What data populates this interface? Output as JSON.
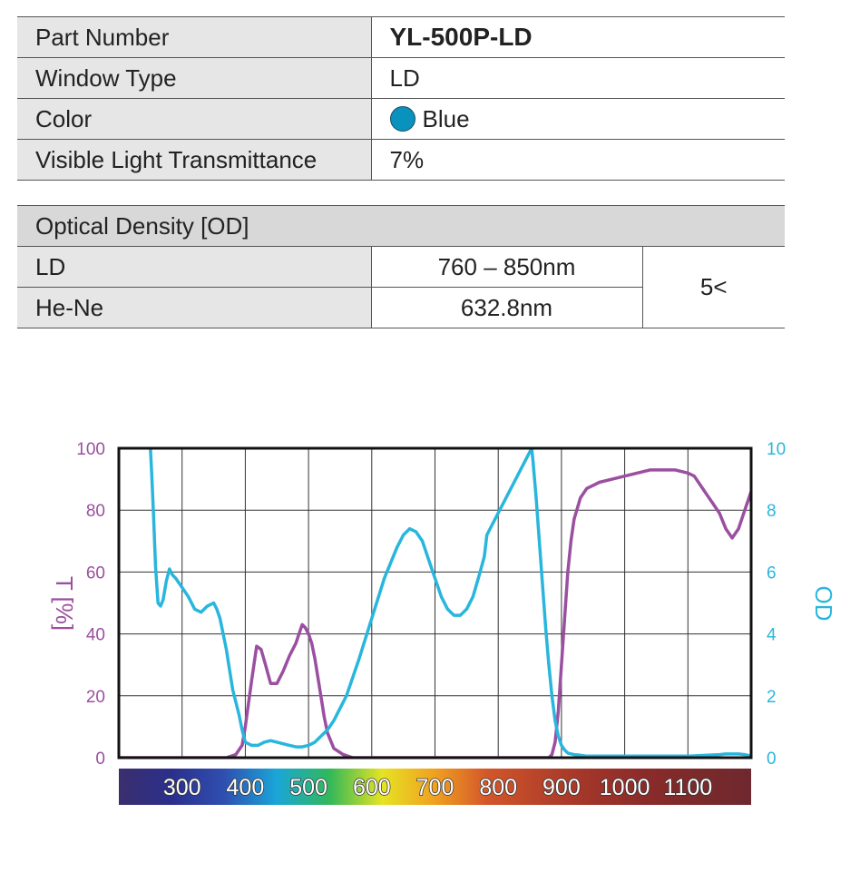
{
  "specs": [
    {
      "label": "Part Number",
      "value": "YL-500P-LD"
    },
    {
      "label": "Window Type",
      "value": "LD"
    },
    {
      "label": "Color",
      "value": "Blue",
      "swatch": "#0892bd"
    },
    {
      "label": "Visible Light Transmittance",
      "value": "7%"
    }
  ],
  "od_table": {
    "header": "Optical Density [OD]",
    "rows": [
      {
        "label": "LD",
        "range": "760 – 850nm"
      },
      {
        "label": "He-Ne",
        "range": "632.8nm"
      }
    ],
    "value": "5<"
  },
  "chart_data": {
    "type": "line",
    "ylabel": "T [%]",
    "y2label": "OD",
    "xlim": [
      200,
      1200
    ],
    "ylim": [
      0,
      100
    ],
    "y2lim": [
      0,
      10
    ],
    "yticks": [
      0,
      20,
      40,
      60,
      80,
      100
    ],
    "y2ticks": [
      0,
      2,
      4,
      6,
      8,
      10
    ],
    "wavelength_labels": [
      "300",
      "400",
      "500",
      "600",
      "700",
      "800",
      "900",
      "1000",
      "1100"
    ],
    "grid": true,
    "series": [
      {
        "name": "T [%]",
        "axis": "left",
        "color": "#9b4fa0",
        "x": [
          200,
          370,
          385,
          395,
          400,
          410,
          418,
          425,
          432,
          440,
          450,
          460,
          470,
          480,
          485,
          490,
          495,
          500,
          505,
          510,
          518,
          525,
          530,
          540,
          555,
          570,
          880,
          885,
          890,
          895,
          900,
          905,
          910,
          915,
          920,
          930,
          940,
          950,
          960,
          980,
          1000,
          1020,
          1040,
          1060,
          1080,
          1100,
          1110,
          1120,
          1130,
          1140,
          1150,
          1160,
          1170,
          1180,
          1190,
          1200
        ],
        "y": [
          0,
          0,
          1,
          4,
          10,
          25,
          36,
          35,
          30,
          24,
          24,
          28,
          33,
          37,
          40,
          43,
          42,
          40,
          37,
          32,
          22,
          13,
          8,
          3,
          1,
          0,
          0,
          1,
          5,
          15,
          30,
          45,
          60,
          70,
          77,
          84,
          87,
          88,
          89,
          90,
          91,
          92,
          93,
          93,
          93,
          92,
          91,
          88,
          85,
          82,
          79,
          74,
          71,
          74,
          80,
          86
        ]
      },
      {
        "name": "OD",
        "axis": "right",
        "color": "#29b6dd",
        "x": [
          250,
          252,
          255,
          258,
          262,
          266,
          270,
          275,
          280,
          285,
          290,
          300,
          310,
          320,
          330,
          340,
          350,
          355,
          360,
          370,
          380,
          390,
          395,
          400,
          410,
          420,
          430,
          440,
          450,
          460,
          470,
          480,
          490,
          500,
          510,
          520,
          530,
          540,
          560,
          580,
          600,
          620,
          640,
          650,
          660,
          670,
          680,
          690,
          700,
          710,
          720,
          730,
          740,
          750,
          760,
          770,
          778,
          782,
          853,
          855,
          860,
          865,
          870,
          875,
          880,
          885,
          890,
          895,
          900,
          905,
          910,
          920,
          930,
          940,
          960,
          1000,
          1050,
          1100,
          1150,
          1160,
          1180,
          1190,
          1200
        ],
        "y": [
          10,
          9.2,
          7.8,
          6.2,
          5.0,
          4.9,
          5.1,
          5.7,
          6.1,
          5.9,
          5.8,
          5.5,
          5.2,
          4.8,
          4.7,
          4.9,
          5.0,
          4.8,
          4.5,
          3.5,
          2.2,
          1.4,
          0.9,
          0.5,
          0.4,
          0.4,
          0.5,
          0.55,
          0.5,
          0.45,
          0.4,
          0.35,
          0.35,
          0.4,
          0.5,
          0.7,
          0.9,
          1.2,
          2.0,
          3.2,
          4.5,
          5.8,
          6.8,
          7.2,
          7.4,
          7.3,
          7.0,
          6.4,
          5.8,
          5.2,
          4.8,
          4.6,
          4.6,
          4.8,
          5.2,
          5.9,
          6.5,
          7.2,
          10,
          9.6,
          8.4,
          7.0,
          5.6,
          4.2,
          3.0,
          2.0,
          1.2,
          0.7,
          0.4,
          0.25,
          0.15,
          0.1,
          0.08,
          0.05,
          0.05,
          0.05,
          0.05,
          0.05,
          0.1,
          0.12,
          0.12,
          0.1,
          0.05
        ]
      }
    ],
    "colors": {
      "spectrum": [
        "#3a2f6e",
        "#2b2f8c",
        "#2f4fb0",
        "#1aa6d8",
        "#32b85a",
        "#e6e324",
        "#f0a020",
        "#d3562a",
        "#b7432a",
        "#9f3429",
        "#8a2b2a",
        "#7a2a2a",
        "#6f2830"
      ]
    }
  }
}
